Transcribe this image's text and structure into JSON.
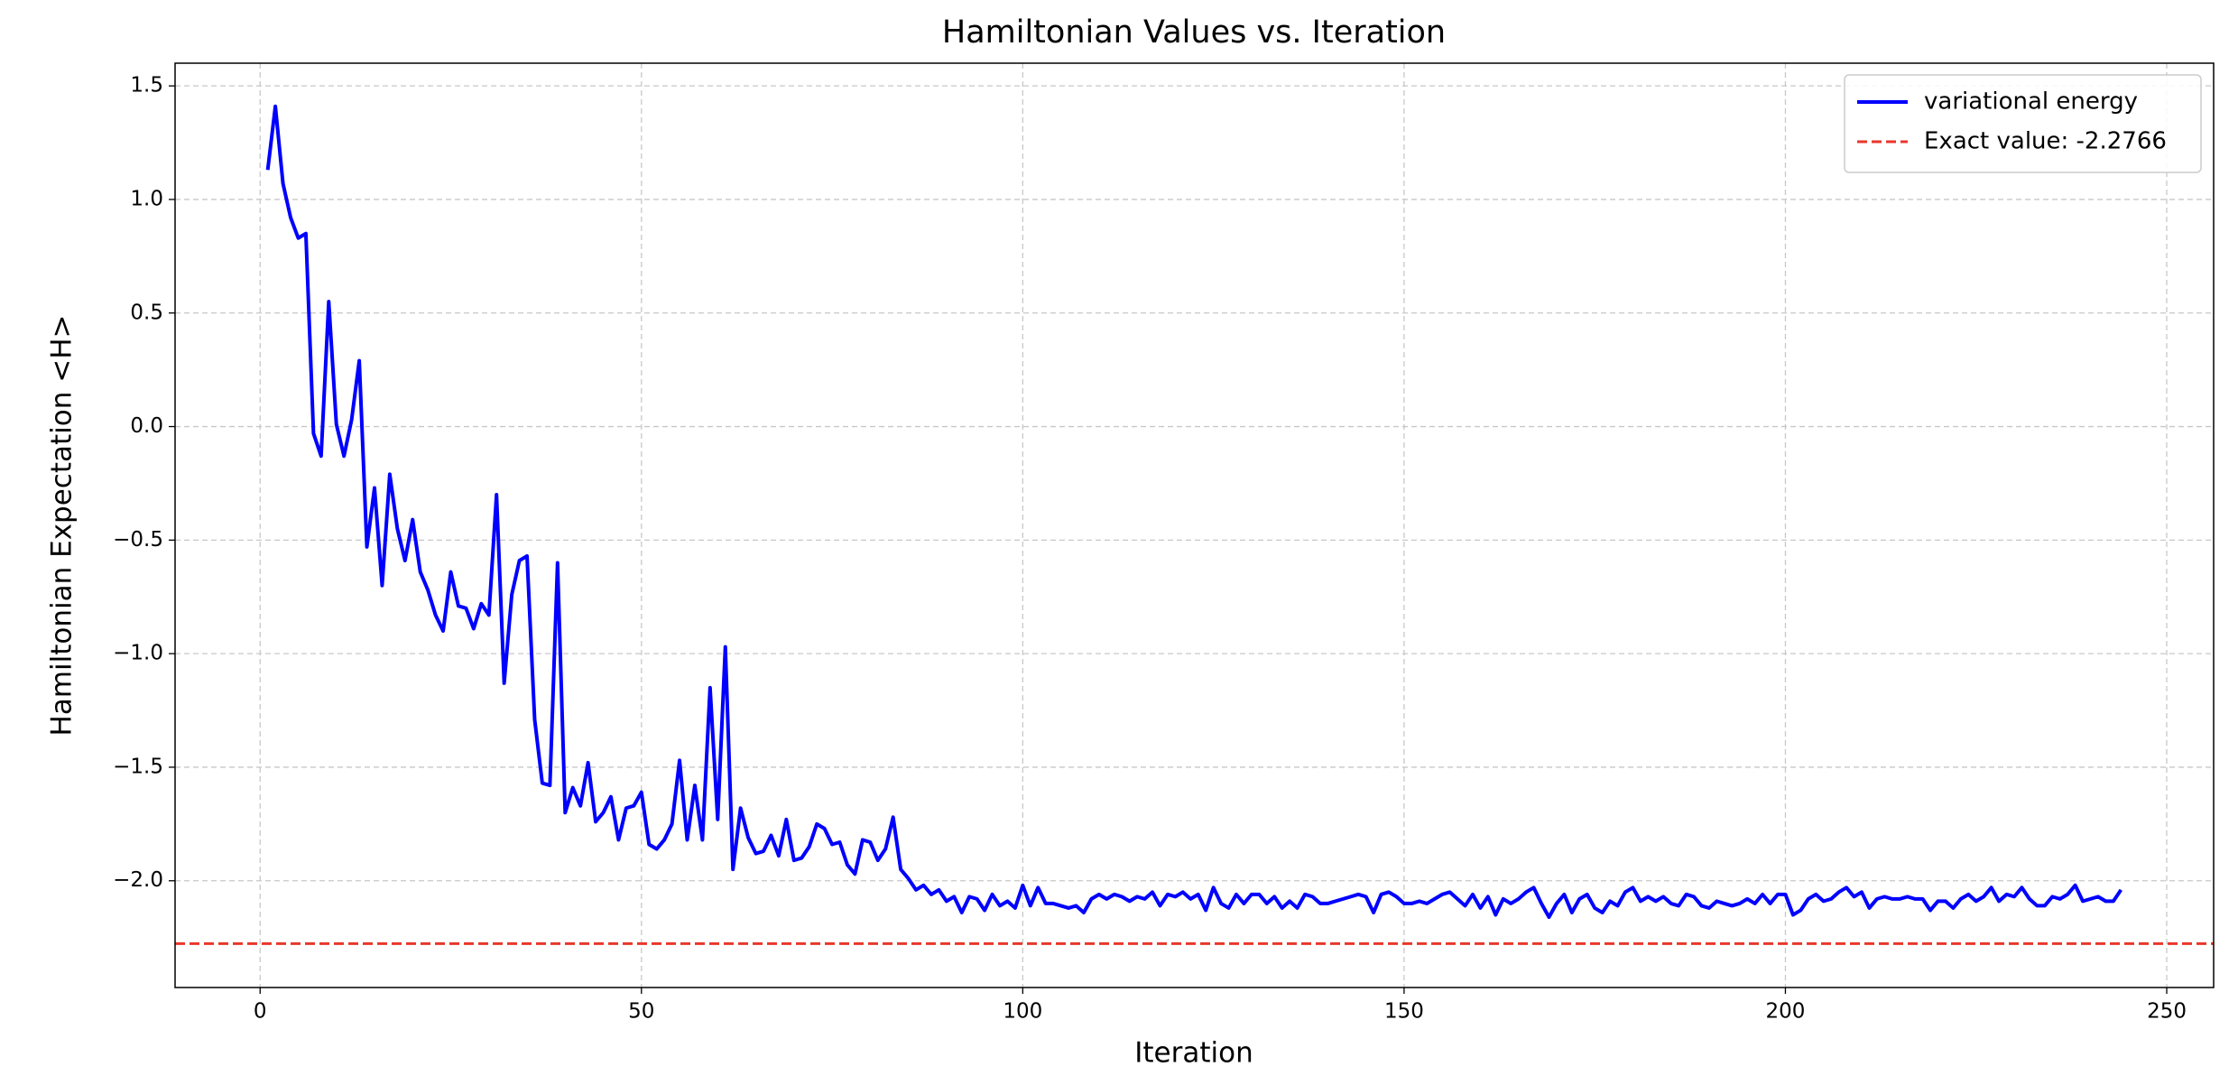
{
  "chart_data": {
    "type": "line",
    "title": "Hamiltonian Values vs. Iteration",
    "x_label": "Iteration",
    "y_label": "Hamiltonian Expectation <H>",
    "x": [
      1,
      2,
      3,
      4,
      5,
      6,
      7,
      8,
      9,
      10,
      11,
      12,
      13,
      14,
      15,
      16,
      17,
      18,
      19,
      20,
      21,
      22,
      23,
      24,
      25,
      26,
      27,
      28,
      29,
      30,
      31,
      32,
      33,
      34,
      35,
      36,
      37,
      38,
      39,
      40,
      41,
      42,
      43,
      44,
      45,
      46,
      47,
      48,
      49,
      50,
      51,
      52,
      53,
      54,
      55,
      56,
      57,
      58,
      59,
      60,
      61,
      62,
      63,
      64,
      65,
      66,
      67,
      68,
      69,
      70,
      71,
      72,
      73,
      74,
      75,
      76,
      77,
      78,
      79,
      80,
      81,
      82,
      83,
      84,
      85,
      86,
      87,
      88,
      89,
      90,
      91,
      92,
      93,
      94,
      95,
      96,
      97,
      98,
      99,
      100,
      101,
      102,
      103,
      104,
      105,
      106,
      107,
      108,
      109,
      110,
      111,
      112,
      113,
      114,
      115,
      116,
      117,
      118,
      119,
      120,
      121,
      122,
      123,
      124,
      125,
      126,
      127,
      128,
      129,
      130,
      131,
      132,
      133,
      134,
      135,
      136,
      137,
      138,
      139,
      140,
      141,
      142,
      143,
      144,
      145,
      146,
      147,
      148,
      149,
      150,
      151,
      152,
      153,
      154,
      155,
      156,
      157,
      158,
      159,
      160,
      161,
      162,
      163,
      164,
      165,
      166,
      167,
      168,
      169,
      170,
      171,
      172,
      173,
      174,
      175,
      176,
      177,
      178,
      179,
      180,
      181,
      182,
      183,
      184,
      185,
      186,
      187,
      188,
      189,
      190,
      191,
      192,
      193,
      194,
      195,
      196,
      197,
      198,
      199,
      200,
      201,
      202,
      203,
      204,
      205,
      206,
      207,
      208,
      209,
      210,
      211,
      212,
      213,
      214,
      215,
      216,
      217,
      218,
      219,
      220,
      221,
      222,
      223,
      224,
      225,
      226,
      227,
      228,
      229,
      230,
      231,
      232,
      233,
      234,
      235,
      236,
      237,
      238,
      239,
      240,
      241,
      242,
      243,
      244
    ],
    "series": [
      {
        "name": "variational energy",
        "color": "#0000ff",
        "values": [
          1.13,
          1.41,
          1.07,
          0.92,
          0.83,
          0.85,
          -0.03,
          -0.13,
          0.55,
          0.01,
          -0.13,
          0.03,
          0.29,
          -0.53,
          -0.27,
          -0.7,
          -0.21,
          -0.45,
          -0.59,
          -0.41,
          -0.64,
          -0.72,
          -0.83,
          -0.9,
          -0.64,
          -0.79,
          -0.8,
          -0.89,
          -0.78,
          -0.83,
          -0.3,
          -1.13,
          -0.74,
          -0.59,
          -0.57,
          -1.29,
          -1.57,
          -1.58,
          -0.6,
          -1.7,
          -1.59,
          -1.67,
          -1.48,
          -1.74,
          -1.7,
          -1.63,
          -1.82,
          -1.68,
          -1.67,
          -1.61,
          -1.84,
          -1.86,
          -1.82,
          -1.75,
          -1.47,
          -1.82,
          -1.58,
          -1.82,
          -1.15,
          -1.73,
          -0.97,
          -1.95,
          -1.68,
          -1.81,
          -1.88,
          -1.87,
          -1.8,
          -1.89,
          -1.73,
          -1.91,
          -1.9,
          -1.85,
          -1.75,
          -1.77,
          -1.84,
          -1.83,
          -1.93,
          -1.97,
          -1.82,
          -1.83,
          -1.91,
          -1.86,
          -1.72,
          -1.95,
          -1.99,
          -2.04,
          -2.02,
          -2.06,
          -2.04,
          -2.09,
          -2.07,
          -2.14,
          -2.07,
          -2.08,
          -2.13,
          -2.06,
          -2.11,
          -2.09,
          -2.12,
          -2.02,
          -2.11,
          -2.03,
          -2.1,
          -2.1,
          -2.11,
          -2.12,
          -2.11,
          -2.14,
          -2.08,
          -2.06,
          -2.08,
          -2.06,
          -2.07,
          -2.09,
          -2.07,
          -2.08,
          -2.05,
          -2.11,
          -2.06,
          -2.07,
          -2.05,
          -2.08,
          -2.06,
          -2.13,
          -2.03,
          -2.1,
          -2.12,
          -2.06,
          -2.1,
          -2.06,
          -2.06,
          -2.1,
          -2.07,
          -2.12,
          -2.09,
          -2.12,
          -2.06,
          -2.07,
          -2.1,
          -2.1,
          -2.09,
          -2.08,
          -2.07,
          -2.06,
          -2.07,
          -2.14,
          -2.06,
          -2.05,
          -2.07,
          -2.1,
          -2.1,
          -2.09,
          -2.1,
          -2.08,
          -2.06,
          -2.05,
          -2.08,
          -2.11,
          -2.06,
          -2.12,
          -2.07,
          -2.15,
          -2.08,
          -2.1,
          -2.08,
          -2.05,
          -2.03,
          -2.1,
          -2.16,
          -2.1,
          -2.06,
          -2.14,
          -2.08,
          -2.06,
          -2.12,
          -2.14,
          -2.09,
          -2.11,
          -2.05,
          -2.03,
          -2.09,
          -2.07,
          -2.09,
          -2.07,
          -2.1,
          -2.11,
          -2.06,
          -2.07,
          -2.11,
          -2.12,
          -2.09,
          -2.1,
          -2.11,
          -2.1,
          -2.08,
          -2.1,
          -2.06,
          -2.1,
          -2.06,
          -2.06,
          -2.15,
          -2.13,
          -2.08,
          -2.06,
          -2.09,
          -2.08,
          -2.05,
          -2.03,
          -2.07,
          -2.05,
          -2.12,
          -2.08,
          -2.07,
          -2.08,
          -2.08,
          -2.07,
          -2.08,
          -2.08,
          -2.13,
          -2.09,
          -2.09,
          -2.12,
          -2.08,
          -2.06,
          -2.09,
          -2.07,
          -2.03,
          -2.09,
          -2.06,
          -2.07,
          -2.03,
          -2.08,
          -2.11,
          -2.11,
          -2.07,
          -2.08,
          -2.06,
          -2.02,
          -2.09,
          -2.08,
          -2.07,
          -2.09,
          -2.09,
          -2.04
        ]
      }
    ],
    "reference_line": {
      "name": "Exact value: -2.2766",
      "value": -2.2766,
      "color": "#e8372b",
      "style": "dashed"
    },
    "xlim": [
      -11.15,
      256.15
    ],
    "ylim": [
      -2.47,
      1.6
    ],
    "xticks": [
      0,
      50,
      100,
      150,
      200,
      250
    ],
    "yticks": [
      1.5,
      {
        "value": 1,
        "label": "1.0"
      },
      0.5,
      {
        "value": 0,
        "label": "0.0"
      },
      {
        "value": -0.5,
        "label": "−0.5"
      },
      {
        "value": -1,
        "label": "−1.0"
      },
      {
        "value": -1.5,
        "label": "−1.5"
      },
      {
        "value": -2,
        "label": "−2.0"
      }
    ],
    "grid": true,
    "legend": "upper right"
  }
}
